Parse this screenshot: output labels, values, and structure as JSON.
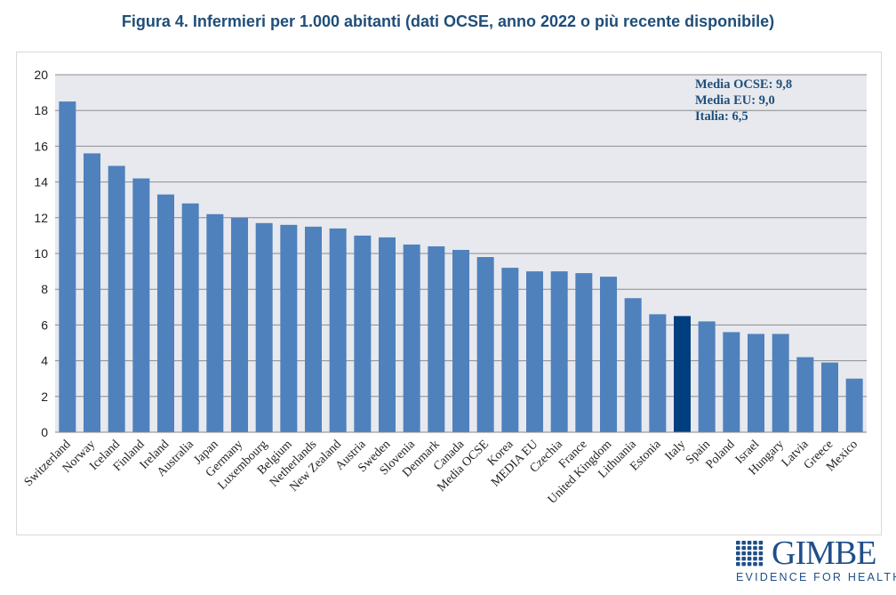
{
  "chart_data": {
    "type": "bar",
    "title": "Figura 4. Infermieri per 1.000 abitanti (dati OCSE, anno 2022 o più recente disponibile)",
    "xlabel": "",
    "ylabel": "",
    "ylim": [
      0,
      20
    ],
    "yticks": [
      0,
      2,
      4,
      6,
      8,
      10,
      12,
      14,
      16,
      18,
      20
    ],
    "grid": true,
    "categories": [
      "Switzerland",
      "Norway",
      "Iceland",
      "Finland",
      "Ireland",
      "Australia",
      "Japan",
      "Germany",
      "Luxembourg",
      "Belgium",
      "Netherlands",
      "New Zealand",
      "Austria",
      "Sweden",
      "Slovenia",
      "Denmark",
      "Canada",
      "Media OCSE",
      "Korea",
      "MEDIA EU",
      "Czechia",
      "France",
      "United Kingdom",
      "Lithuania",
      "Estonia",
      "Italy",
      "Spain",
      "Poland",
      "Israel",
      "Hungary",
      "Latvia",
      "Greece",
      "Mexico"
    ],
    "values": [
      18.5,
      15.6,
      14.9,
      14.2,
      13.3,
      12.8,
      12.2,
      12.0,
      11.7,
      11.6,
      11.5,
      11.4,
      11.0,
      10.9,
      10.5,
      10.4,
      10.2,
      9.8,
      9.2,
      9.0,
      9.0,
      8.9,
      8.7,
      7.5,
      6.6,
      6.5,
      6.2,
      5.6,
      5.5,
      5.5,
      4.2,
      3.9,
      3.0
    ],
    "highlight": "Italy",
    "colors": {
      "bar": "#4f81bd",
      "highlight": "#003f7f",
      "plot_bg": "#e7e9ee",
      "grid": "#8c8c8c"
    },
    "annotations": [
      "Media OCSE: 9,8",
      "Media EU: 9,0",
      "Italia: 6,5"
    ]
  },
  "logo": {
    "name": "GIMBE",
    "tagline": "EVIDENCE FOR HEALTH"
  }
}
